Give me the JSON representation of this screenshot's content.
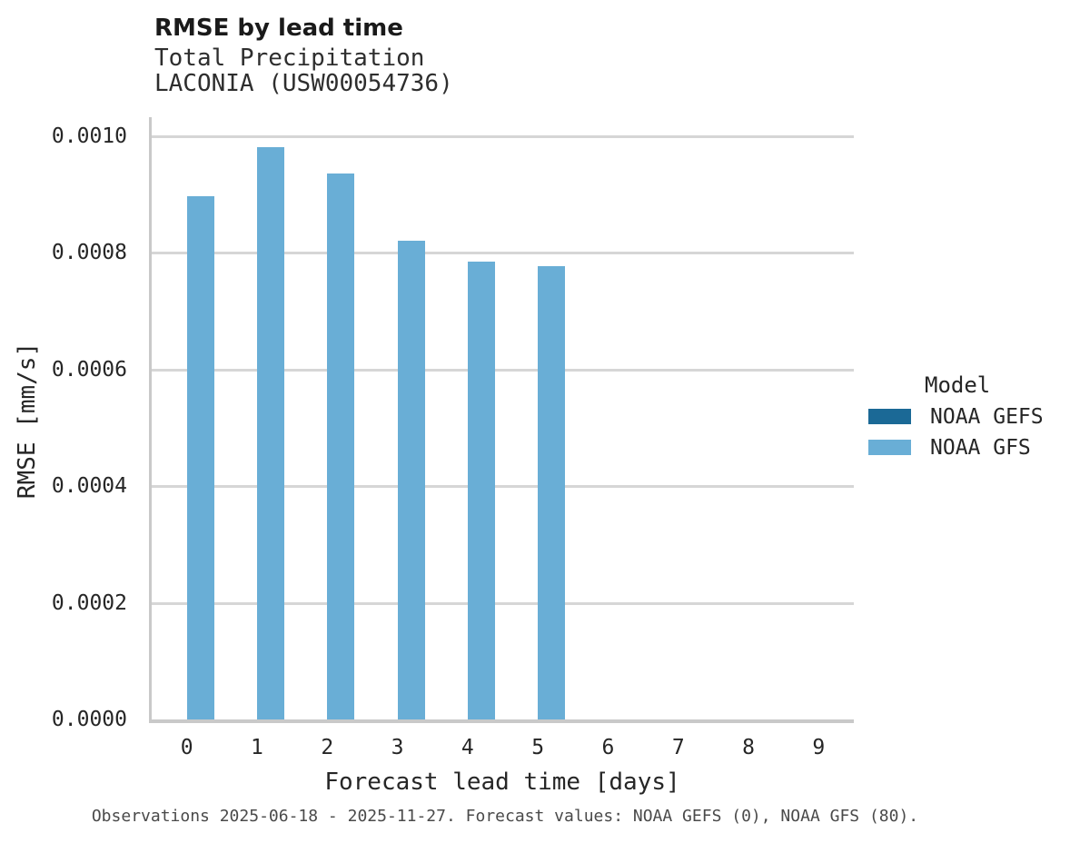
{
  "chart_data": {
    "type": "bar",
    "title": "RMSE by lead time",
    "subtitle_line1": "Total Precipitation",
    "subtitle_line2": "LACONIA (USW00054736)",
    "xlabel": "Forecast lead time [days]",
    "ylabel": "RMSE [mm/s]",
    "categories": [
      "0",
      "1",
      "2",
      "3",
      "4",
      "5",
      "6",
      "7",
      "8",
      "9"
    ],
    "series": [
      {
        "name": "NOAA GEFS",
        "color": "#1b6996",
        "values": [
          null,
          null,
          null,
          null,
          null,
          null,
          null,
          null,
          null,
          null
        ]
      },
      {
        "name": "NOAA GFS",
        "color": "#69aed6",
        "values": [
          0.000896,
          0.000981,
          0.000936,
          0.00082,
          0.000785,
          0.000776,
          null,
          null,
          null,
          null
        ]
      }
    ],
    "yticks": [
      {
        "value": 0.0,
        "label": "0.0000"
      },
      {
        "value": 0.0002,
        "label": "0.0002"
      },
      {
        "value": 0.0004,
        "label": "0.0004"
      },
      {
        "value": 0.0006,
        "label": "0.0006"
      },
      {
        "value": 0.0008,
        "label": "0.0008"
      },
      {
        "value": 0.001,
        "label": "0.0010"
      }
    ],
    "ylim": [
      0,
      0.001032
    ],
    "grid": "horizontal",
    "legend_title": "Model",
    "legend_position": "right",
    "caption": "Observations 2025-06-18 - 2025-11-27. Forecast values: NOAA GEFS (0), NOAA GFS (80)."
  }
}
